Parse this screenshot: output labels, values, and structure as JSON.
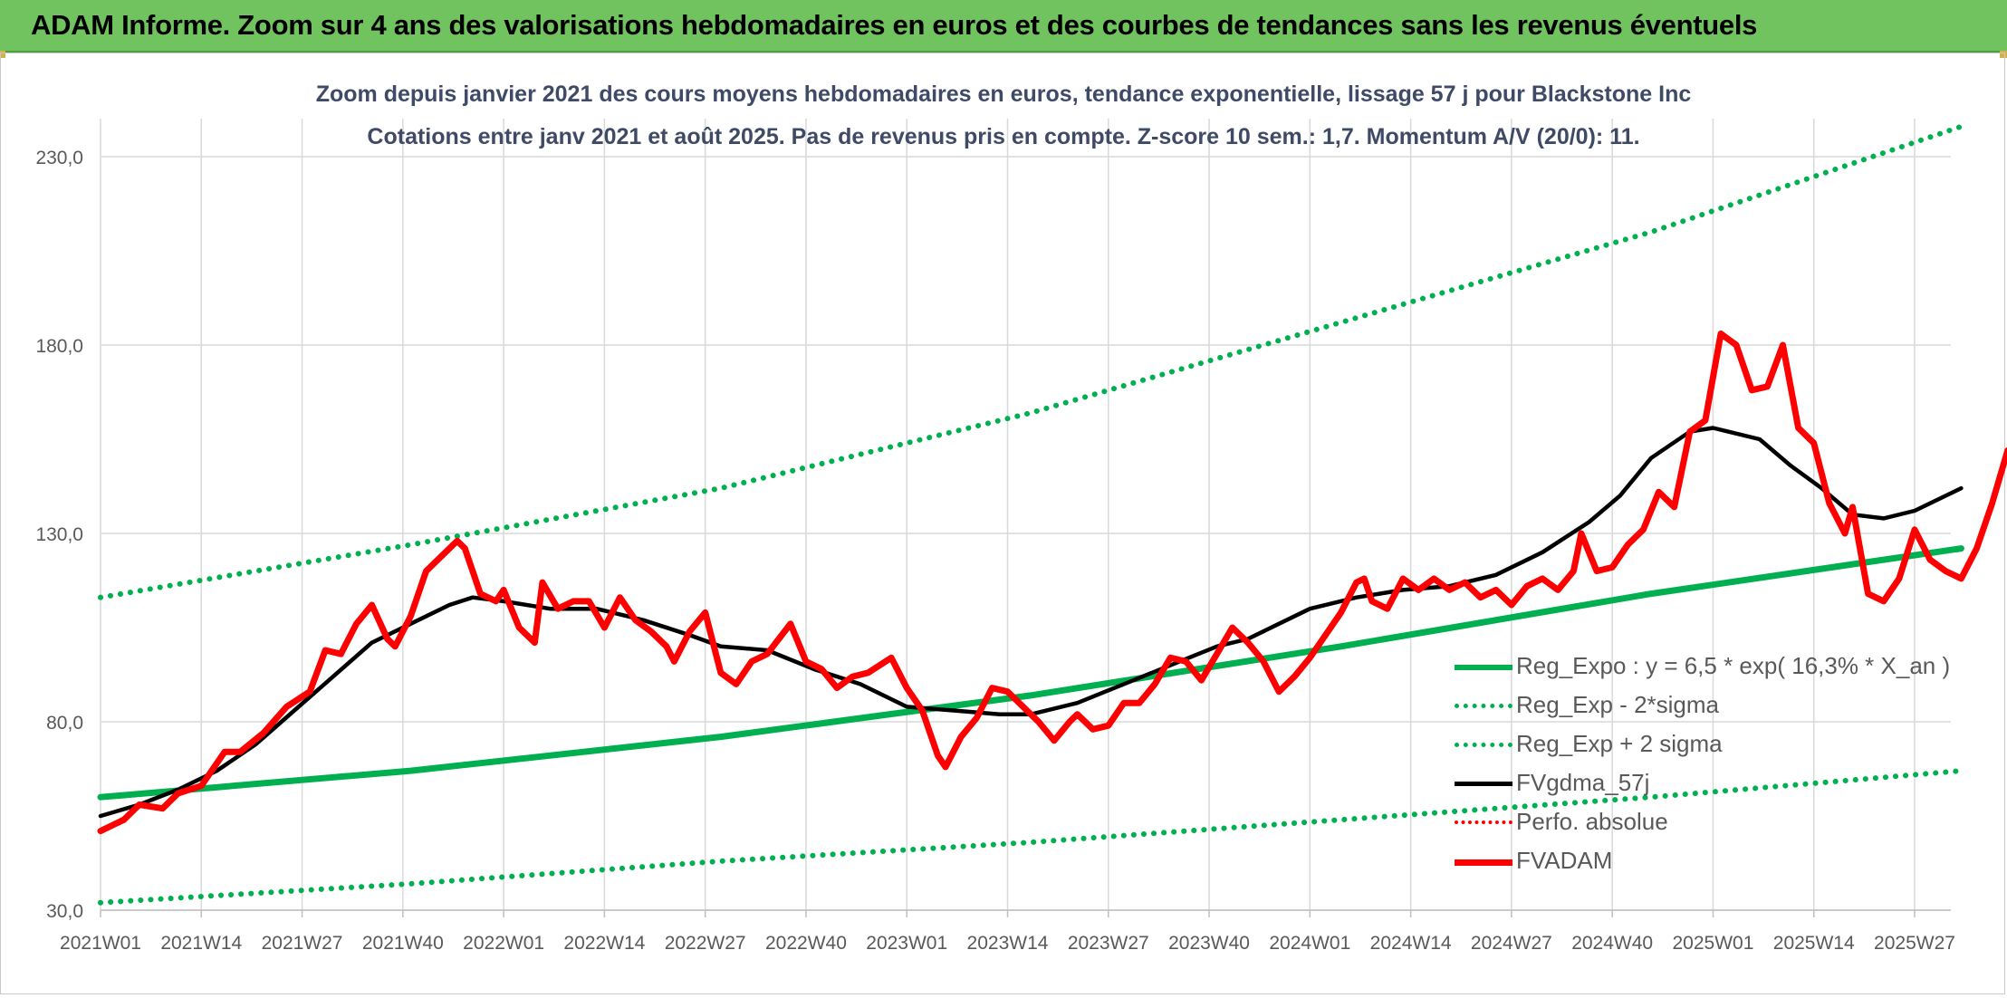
{
  "banner": {
    "title": "ADAM Informe. Zoom sur 4 ans des valorisations hebdomadaires en euros et des courbes de tendances sans les revenus éventuels"
  },
  "chart_data": {
    "type": "line",
    "title_line1": "Zoom depuis janvier 2021 des cours moyens hebdomadaires en euros, tendance exponentielle, lissage 57 j pour Blackstone Inc",
    "title_line2": "Cotations entre janv 2021 et août 2025. Pas de revenus pris en compte. Z-score 10 sem.: 1,7. Momentum A/V (20/0): 11.",
    "x_axis_unit": "week index since 2021W01",
    "x_ticks": [
      {
        "x": 0,
        "label": "2021W01"
      },
      {
        "x": 13,
        "label": "2021W14"
      },
      {
        "x": 26,
        "label": "2021W27"
      },
      {
        "x": 39,
        "label": "2021W40"
      },
      {
        "x": 52,
        "label": "2022W01"
      },
      {
        "x": 65,
        "label": "2022W14"
      },
      {
        "x": 78,
        "label": "2022W27"
      },
      {
        "x": 91,
        "label": "2022W40"
      },
      {
        "x": 104,
        "label": "2023W01"
      },
      {
        "x": 117,
        "label": "2023W14"
      },
      {
        "x": 130,
        "label": "2023W27"
      },
      {
        "x": 143,
        "label": "2023W40"
      },
      {
        "x": 156,
        "label": "2024W01"
      },
      {
        "x": 169,
        "label": "2024W14"
      },
      {
        "x": 182,
        "label": "2024W27"
      },
      {
        "x": 195,
        "label": "2024W40"
      },
      {
        "x": 208,
        "label": "2025W01"
      },
      {
        "x": 221,
        "label": "2025W14"
      },
      {
        "x": 234,
        "label": "2025W27"
      }
    ],
    "xlim": [
      0,
      240
    ],
    "ylim": [
      30,
      230
    ],
    "y_ticks": [
      {
        "value": 30,
        "label": "30,0"
      },
      {
        "value": 80,
        "label": "80,0"
      },
      {
        "value": 130,
        "label": "130,0"
      },
      {
        "value": 180,
        "label": "180,0"
      },
      {
        "value": 230,
        "label": "230,0"
      }
    ],
    "grid": true,
    "legend_position": "bottom-right",
    "series": [
      {
        "name": "Reg_Expo : y = 6,5 * exp( 16,3% *  X_an )",
        "color": "#00b050",
        "style": "solid",
        "points": [
          [
            0,
            60
          ],
          [
            40,
            67
          ],
          [
            80,
            76
          ],
          [
            120,
            87
          ],
          [
            160,
            100
          ],
          [
            200,
            114
          ],
          [
            240,
            126
          ]
        ]
      },
      {
        "name": "Reg_Exp - 2*sigma",
        "color": "#00b050",
        "style": "dotted",
        "points": [
          [
            0,
            32
          ],
          [
            40,
            37
          ],
          [
            80,
            43
          ],
          [
            120,
            48
          ],
          [
            160,
            54
          ],
          [
            200,
            60
          ],
          [
            240,
            67
          ]
        ]
      },
      {
        "name": "Reg_Exp + 2 sigma",
        "color": "#00b050",
        "style": "dotted",
        "points": [
          [
            0,
            113
          ],
          [
            40,
            127
          ],
          [
            80,
            142
          ],
          [
            120,
            162
          ],
          [
            160,
            186
          ],
          [
            200,
            210
          ],
          [
            240,
            238
          ]
        ]
      },
      {
        "name": "FVgdma_57j",
        "color": "#000000",
        "style": "solid",
        "points": [
          [
            0,
            55
          ],
          [
            5,
            58
          ],
          [
            10,
            62
          ],
          [
            15,
            67
          ],
          [
            20,
            74
          ],
          [
            25,
            83
          ],
          [
            30,
            92
          ],
          [
            35,
            101
          ],
          [
            40,
            106
          ],
          [
            45,
            111
          ],
          [
            48,
            113
          ],
          [
            52,
            112
          ],
          [
            58,
            110
          ],
          [
            64,
            110
          ],
          [
            70,
            107
          ],
          [
            76,
            103
          ],
          [
            80,
            100
          ],
          [
            86,
            99
          ],
          [
            92,
            94
          ],
          [
            98,
            90
          ],
          [
            104,
            84
          ],
          [
            110,
            83
          ],
          [
            116,
            82
          ],
          [
            120,
            82
          ],
          [
            126,
            85
          ],
          [
            132,
            90
          ],
          [
            138,
            95
          ],
          [
            144,
            100
          ],
          [
            148,
            102
          ],
          [
            152,
            106
          ],
          [
            156,
            110
          ],
          [
            162,
            113
          ],
          [
            168,
            115
          ],
          [
            174,
            116
          ],
          [
            180,
            119
          ],
          [
            186,
            125
          ],
          [
            192,
            133
          ],
          [
            196,
            140
          ],
          [
            200,
            150
          ],
          [
            205,
            157
          ],
          [
            208,
            158
          ],
          [
            214,
            155
          ],
          [
            218,
            148
          ],
          [
            222,
            142
          ],
          [
            226,
            135
          ],
          [
            230,
            134
          ],
          [
            234,
            136
          ],
          [
            240,
            142
          ]
        ]
      },
      {
        "name": "Perfo. absolue",
        "color": "#ff0000",
        "style": "dotted",
        "points": []
      },
      {
        "name": "FVADAM",
        "color": "#ff0000",
        "style": "solid",
        "points": [
          [
            0,
            51
          ],
          [
            3,
            54
          ],
          [
            5,
            58
          ],
          [
            8,
            57
          ],
          [
            10,
            61
          ],
          [
            13,
            63
          ],
          [
            16,
            72
          ],
          [
            18,
            72
          ],
          [
            21,
            77
          ],
          [
            24,
            84
          ],
          [
            27,
            88
          ],
          [
            29,
            99
          ],
          [
            31,
            98
          ],
          [
            33,
            106
          ],
          [
            35,
            111
          ],
          [
            37,
            102
          ],
          [
            38,
            100
          ],
          [
            40,
            108
          ],
          [
            42,
            120
          ],
          [
            44,
            124
          ],
          [
            46,
            128
          ],
          [
            47,
            126
          ],
          [
            49,
            114
          ],
          [
            51,
            112
          ],
          [
            52,
            115
          ],
          [
            54,
            105
          ],
          [
            56,
            101
          ],
          [
            57,
            117
          ],
          [
            59,
            110
          ],
          [
            61,
            112
          ],
          [
            63,
            112
          ],
          [
            65,
            105
          ],
          [
            67,
            113
          ],
          [
            69,
            107
          ],
          [
            71,
            104
          ],
          [
            73,
            100
          ],
          [
            74,
            96
          ],
          [
            76,
            104
          ],
          [
            78,
            109
          ],
          [
            80,
            93
          ],
          [
            82,
            90
          ],
          [
            84,
            96
          ],
          [
            86,
            98
          ],
          [
            89,
            106
          ],
          [
            91,
            96
          ],
          [
            93,
            94
          ],
          [
            95,
            89
          ],
          [
            97,
            92
          ],
          [
            99,
            93
          ],
          [
            102,
            97
          ],
          [
            104,
            89
          ],
          [
            106,
            83
          ],
          [
            108,
            71
          ],
          [
            109,
            68
          ],
          [
            111,
            76
          ],
          [
            113,
            81
          ],
          [
            115,
            89
          ],
          [
            117,
            88
          ],
          [
            119,
            84
          ],
          [
            121,
            80
          ],
          [
            123,
            75
          ],
          [
            125,
            80
          ],
          [
            126,
            82
          ],
          [
            128,
            78
          ],
          [
            130,
            79
          ],
          [
            132,
            85
          ],
          [
            134,
            85
          ],
          [
            136,
            90
          ],
          [
            138,
            97
          ],
          [
            140,
            96
          ],
          [
            142,
            91
          ],
          [
            144,
            98
          ],
          [
            146,
            105
          ],
          [
            148,
            101
          ],
          [
            150,
            96
          ],
          [
            152,
            88
          ],
          [
            154,
            92
          ],
          [
            156,
            97
          ],
          [
            158,
            103
          ],
          [
            160,
            109
          ],
          [
            162,
            117
          ],
          [
            163,
            118
          ],
          [
            164,
            112
          ],
          [
            166,
            110
          ],
          [
            168,
            118
          ],
          [
            170,
            115
          ],
          [
            172,
            118
          ],
          [
            174,
            115
          ],
          [
            176,
            117
          ],
          [
            178,
            113
          ],
          [
            180,
            115
          ],
          [
            182,
            111
          ],
          [
            184,
            116
          ],
          [
            186,
            118
          ],
          [
            188,
            115
          ],
          [
            190,
            120
          ],
          [
            191,
            130
          ],
          [
            193,
            120
          ],
          [
            195,
            121
          ],
          [
            197,
            127
          ],
          [
            199,
            131
          ],
          [
            201,
            141
          ],
          [
            203,
            137
          ],
          [
            205,
            157
          ],
          [
            207,
            160
          ],
          [
            209,
            183
          ],
          [
            211,
            180
          ],
          [
            213,
            168
          ],
          [
            215,
            169
          ],
          [
            217,
            180
          ],
          [
            219,
            158
          ],
          [
            221,
            154
          ],
          [
            223,
            138
          ],
          [
            225,
            130
          ],
          [
            226,
            137
          ],
          [
            228,
            114
          ],
          [
            230,
            112
          ],
          [
            232,
            118
          ],
          [
            234,
            131
          ],
          [
            236,
            123
          ],
          [
            238,
            120
          ],
          [
            240,
            118
          ],
          [
            242,
            126
          ],
          [
            244,
            138
          ],
          [
            246,
            152
          ]
        ]
      }
    ]
  }
}
